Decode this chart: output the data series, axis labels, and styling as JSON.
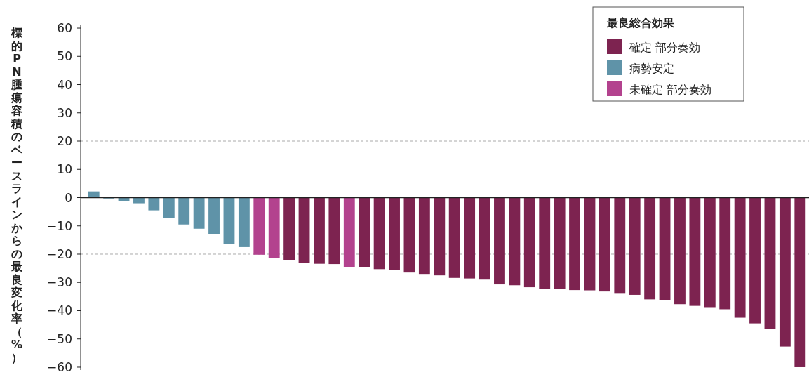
{
  "chart_data": {
    "type": "bar",
    "ylabel": "標的PN腫瘍容積のベースラインからの最良変化率（%）",
    "legend_title": "最良総合効果",
    "legend": "top right",
    "categories": [
      null,
      null,
      null,
      null,
      null,
      null,
      null,
      null,
      null,
      null,
      null,
      null,
      null,
      null,
      null,
      null,
      null,
      null,
      null,
      null,
      null,
      null,
      null,
      null,
      null,
      null,
      null,
      null,
      null,
      null,
      null,
      null,
      null,
      null,
      null,
      null,
      null,
      null,
      null,
      null,
      null,
      null,
      null,
      null,
      null,
      null,
      null,
      null
    ],
    "series": [
      {
        "name": "確定 部分奏効",
        "color": "#7d2350",
        "values": [
          null,
          null,
          null,
          null,
          null,
          null,
          null,
          null,
          null,
          null,
          null,
          null,
          null,
          -22,
          -23,
          -23.4,
          -23.5,
          null,
          -24.6,
          -25.3,
          -25.5,
          -26.5,
          -27,
          -27.5,
          -28.4,
          -28.6,
          -29,
          -30.7,
          -31,
          -31.7,
          -32.3,
          -32.3,
          -32.7,
          -32.8,
          -33.2,
          -34,
          -34.4,
          -36,
          -36.4,
          -37.7,
          -38.3,
          -39,
          -39.5,
          -42.5,
          -44.5,
          -46.5,
          -52.7,
          -60
        ]
      },
      {
        "name": "病勢安定",
        "color": "#5f93a8",
        "values": [
          2.2,
          -0.3,
          -1.2,
          -2,
          -4.5,
          -7.2,
          -9.5,
          -11,
          -13,
          -16.5,
          -17.5,
          null,
          null,
          null,
          null,
          null,
          null,
          null,
          null,
          null,
          null,
          null,
          null,
          null,
          null,
          null,
          null,
          null,
          null,
          null,
          null,
          null,
          null,
          null,
          null,
          null,
          null,
          null,
          null,
          null,
          null,
          null,
          null,
          null,
          null,
          null,
          null,
          null
        ]
      },
      {
        "name": "未確定 部分奏効",
        "color": "#b3428e",
        "values": [
          null,
          null,
          null,
          null,
          null,
          null,
          null,
          null,
          null,
          null,
          null,
          -20.2,
          -21.3,
          null,
          null,
          null,
          null,
          -24.5,
          null,
          null,
          null,
          null,
          null,
          null,
          null,
          null,
          null,
          null,
          null,
          null,
          null,
          null,
          null,
          null,
          null,
          null,
          null,
          null,
          null,
          null,
          null,
          null,
          null,
          null,
          null,
          null,
          null,
          null
        ]
      }
    ],
    "ylim": [
      -61,
      61
    ],
    "yticks": [
      60,
      50,
      40,
      30,
      20,
      10,
      0,
      {
        "value": -10,
        "label": "−10"
      },
      {
        "value": -20,
        "label": "−20"
      },
      {
        "value": -30,
        "label": "−30"
      },
      {
        "value": -40,
        "label": "−40"
      },
      {
        "value": -50,
        "label": "−50"
      },
      {
        "value": -60,
        "label": "−60"
      }
    ],
    "ref_lines": [
      {
        "axis": "y",
        "value": 20,
        "color": "#aaaaaa",
        "line_style": "dashed"
      },
      {
        "axis": "y",
        "value": -20,
        "color": "#aaaaaa",
        "line_style": "dashed"
      }
    ],
    "grid": false
  }
}
